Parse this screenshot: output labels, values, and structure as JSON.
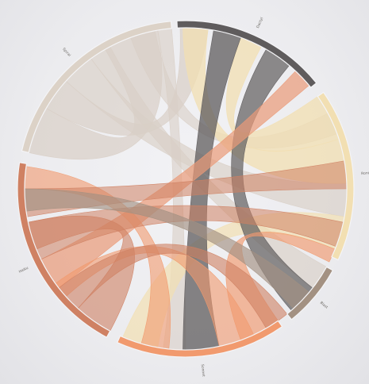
{
  "diagram": {
    "type": "chord",
    "groups": [
      {
        "id": "g-top",
        "label": "Dactyl",
        "color": "#5f5c5d",
        "start": -3,
        "end": 51
      },
      {
        "id": "g-right",
        "label": "Rondel",
        "color": "#f2dfb2",
        "start": 55,
        "end": 115
      },
      {
        "id": "g-smallright",
        "label": "Blast",
        "color": "#a39182",
        "start": 119,
        "end": 141
      },
      {
        "id": "g-bottom",
        "label": "Sonnet",
        "color": "#f19a6e",
        "start": 145,
        "end": 204
      },
      {
        "id": "g-left",
        "label": "Haiku",
        "color": "#cf8163",
        "start": 208,
        "end": 279
      },
      {
        "id": "g-topleft",
        "label": "Spiral",
        "color": "#dcd2c7",
        "start": 283,
        "end": 355
      }
    ],
    "ribbons": [
      {
        "color": "#d9cfc6",
        "opacity": 0.7,
        "a": [
          283,
          300
        ],
        "b": [
          330,
          350
        ]
      },
      {
        "color": "#d9cfc6",
        "opacity": 0.7,
        "a": [
          300,
          312
        ],
        "b": [
          -2,
          8
        ]
      },
      {
        "color": "#d9cfc6",
        "opacity": 0.65,
        "a": [
          312,
          324
        ],
        "b": [
          88,
          100
        ]
      },
      {
        "color": "#d9cfc6",
        "opacity": 0.65,
        "a": [
          324,
          332
        ],
        "b": [
          119,
          128
        ]
      },
      {
        "color": "#d9cfc6",
        "opacity": 0.6,
        "a": [
          340,
          349
        ],
        "b": [
          62,
          70
        ]
      },
      {
        "color": "#d9cfc6",
        "opacity": 0.6,
        "a": [
          350,
          355
        ],
        "b": [
          180,
          188
        ]
      },
      {
        "color": "#f2dfb2",
        "opacity": 0.75,
        "a": [
          55,
          72
        ],
        "b": [
          20,
          28
        ]
      },
      {
        "color": "#f2dfb2",
        "opacity": 0.75,
        "a": [
          72,
          88
        ],
        "b": [
          -1,
          8
        ]
      },
      {
        "color": "#f2dfb2",
        "opacity": 0.7,
        "a": [
          100,
          112
        ],
        "b": [
          190,
          203
        ]
      },
      {
        "color": "#5f5c5d",
        "opacity": 0.75,
        "a": [
          10,
          20
        ],
        "b": [
          168,
          181
        ]
      },
      {
        "color": "#5f5c5d",
        "opacity": 0.7,
        "a": [
          30,
          40
        ],
        "b": [
          128,
          139
        ]
      },
      {
        "color": "#ea9a78",
        "opacity": 0.7,
        "a": [
          43,
          50
        ],
        "b": [
          232,
          244
        ]
      },
      {
        "color": "#f19a6e",
        "opacity": 0.65,
        "a": [
          145,
          160
        ],
        "b": [
          112,
          117
        ]
      },
      {
        "color": "#f19a6e",
        "opacity": 0.6,
        "a": [
          155,
          168
        ],
        "b": [
          228,
          234
        ]
      },
      {
        "color": "#f19a6e",
        "opacity": 0.6,
        "a": [
          186,
          196
        ],
        "b": [
          270,
          278
        ]
      },
      {
        "color": "#cf8163",
        "opacity": 0.6,
        "a": [
          208,
          222
        ],
        "b": [
          248,
          258
        ]
      },
      {
        "color": "#cf8163",
        "opacity": 0.6,
        "a": [
          222,
          232
        ],
        "b": [
          141,
          150
        ]
      },
      {
        "color": "#cf8163",
        "opacity": 0.55,
        "a": [
          244,
          258
        ],
        "b": [
          102,
          111
        ]
      },
      {
        "color": "#cf8163",
        "opacity": 0.55,
        "a": [
          260,
          270
        ],
        "b": [
          80,
          90
        ]
      },
      {
        "color": "#a39182",
        "opacity": 0.65,
        "a": [
          130,
          138
        ],
        "b": [
          262,
          270
        ]
      }
    ]
  }
}
